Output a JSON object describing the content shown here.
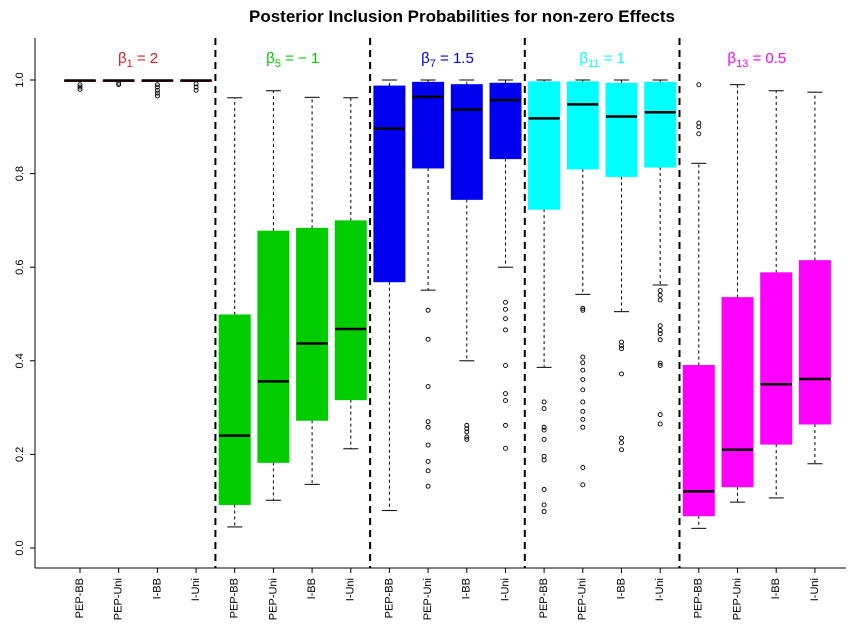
{
  "chart_data": {
    "type": "box",
    "title": "Posterior Inclusion Probabilities for non-zero Effects",
    "xlabel": "",
    "ylabel": "",
    "ylim": [
      0.0,
      1.0
    ],
    "yticks": [
      "0.0",
      "0.2",
      "0.4",
      "0.6",
      "0.8",
      "1.0"
    ],
    "grid": false,
    "method_labels": [
      "PEP-BB",
      "PEP-Uni",
      "I-BB",
      "I-Uni"
    ],
    "groups": [
      {
        "label_sym": "β",
        "label_sub": "1",
        "label_rest": " = 2",
        "color": "#e31a1c",
        "boxes": [
          {
            "q1": 0.998,
            "median": 0.999,
            "q3": 1.0,
            "whisker_low": 0.997,
            "whisker_high": 1.0,
            "outliers": [
              0.99,
              0.985,
              0.98
            ]
          },
          {
            "q1": 0.998,
            "median": 0.999,
            "q3": 1.0,
            "whisker_low": 0.997,
            "whisker_high": 1.0,
            "outliers": [
              0.993,
              0.99
            ]
          },
          {
            "q1": 0.998,
            "median": 0.999,
            "q3": 1.0,
            "whisker_low": 0.997,
            "whisker_high": 1.0,
            "outliers": [
              0.99,
              0.985,
              0.978,
              0.972,
              0.966
            ]
          },
          {
            "q1": 0.998,
            "median": 0.999,
            "q3": 1.0,
            "whisker_low": 0.997,
            "whisker_high": 1.0,
            "outliers": [
              0.992,
              0.985,
              0.978
            ]
          }
        ]
      },
      {
        "label_sym": "β",
        "label_sub": "5",
        "label_rest": " = − 1",
        "color": "#00cc00",
        "boxes": [
          {
            "q1": 0.093,
            "median": 0.24,
            "q3": 0.498,
            "whisker_low": 0.045,
            "whisker_high": 0.962,
            "outliers": []
          },
          {
            "q1": 0.183,
            "median": 0.356,
            "q3": 0.677,
            "whisker_low": 0.102,
            "whisker_high": 0.977,
            "outliers": []
          },
          {
            "q1": 0.273,
            "median": 0.437,
            "q3": 0.683,
            "whisker_low": 0.136,
            "whisker_high": 0.963,
            "outliers": []
          },
          {
            "q1": 0.317,
            "median": 0.468,
            "q3": 0.699,
            "whisker_low": 0.212,
            "whisker_high": 0.962,
            "outliers": []
          }
        ]
      },
      {
        "label_sym": "β",
        "label_sub": "7",
        "label_rest": " = 1.5",
        "color": "#0000ee",
        "boxes": [
          {
            "q1": 0.569,
            "median": 0.896,
            "q3": 0.987,
            "whisker_low": 0.08,
            "whisker_high": 1.0,
            "outliers": []
          },
          {
            "q1": 0.812,
            "median": 0.964,
            "q3": 0.995,
            "whisker_low": 0.551,
            "whisker_high": 1.0,
            "outliers": [
              0.508,
              0.446,
              0.345,
              0.27,
              0.258,
              0.22,
              0.185,
              0.165,
              0.132
            ]
          },
          {
            "q1": 0.745,
            "median": 0.937,
            "q3": 0.99,
            "whisker_low": 0.4,
            "whisker_high": 1.0,
            "outliers": [
              0.262,
              0.255,
              0.248,
              0.237,
              0.232
            ]
          },
          {
            "q1": 0.832,
            "median": 0.957,
            "q3": 0.993,
            "whisker_low": 0.6,
            "whisker_high": 1.0,
            "outliers": [
              0.525,
              0.51,
              0.49,
              0.466,
              0.39,
              0.33,
              0.315,
              0.262,
              0.213
            ]
          }
        ]
      },
      {
        "label_sym": "β",
        "label_sub": "11",
        "label_rest": " = 1",
        "color": "#00ffff",
        "boxes": [
          {
            "q1": 0.724,
            "median": 0.918,
            "q3": 0.996,
            "whisker_low": 0.386,
            "whisker_high": 1.0,
            "outliers": [
              0.312,
              0.298,
              0.258,
              0.252,
              0.232,
              0.196,
              0.188,
              0.125,
              0.092,
              0.078
            ]
          },
          {
            "q1": 0.81,
            "median": 0.948,
            "q3": 0.996,
            "whisker_low": 0.542,
            "whisker_high": 1.0,
            "outliers": [
              0.512,
              0.508,
              0.408,
              0.396,
              0.38,
              0.36,
              0.338,
              0.312,
              0.292,
              0.275,
              0.258,
              0.172,
              0.135
            ]
          },
          {
            "q1": 0.794,
            "median": 0.922,
            "q3": 0.993,
            "whisker_low": 0.505,
            "whisker_high": 1.0,
            "outliers": [
              0.44,
              0.432,
              0.426,
              0.372,
              0.235,
              0.225,
              0.21
            ]
          },
          {
            "q1": 0.814,
            "median": 0.931,
            "q3": 0.995,
            "whisker_low": 0.562,
            "whisker_high": 1.0,
            "outliers": [
              0.55,
              0.54,
              0.53,
              0.475,
              0.465,
              0.458,
              0.445,
              0.395,
              0.39,
              0.285,
              0.265
            ]
          }
        ]
      },
      {
        "label_sym": "β",
        "label_sub": "13",
        "label_rest": " = 0.5",
        "color": "#ff00ff",
        "boxes": [
          {
            "q1": 0.069,
            "median": 0.121,
            "q3": 0.39,
            "whisker_low": 0.042,
            "whisker_high": 0.822,
            "outliers": [
              0.99,
              0.908,
              0.9,
              0.885
            ]
          },
          {
            "q1": 0.131,
            "median": 0.21,
            "q3": 0.535,
            "whisker_low": 0.098,
            "whisker_high": 0.99,
            "outliers": []
          },
          {
            "q1": 0.222,
            "median": 0.35,
            "q3": 0.588,
            "whisker_low": 0.107,
            "whisker_high": 0.977,
            "outliers": []
          },
          {
            "q1": 0.265,
            "median": 0.361,
            "q3": 0.614,
            "whisker_low": 0.18,
            "whisker_high": 0.974,
            "outliers": []
          }
        ]
      }
    ]
  }
}
